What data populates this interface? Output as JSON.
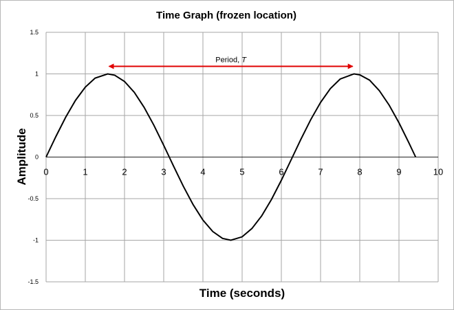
{
  "chart_data": {
    "type": "line",
    "title": "Time Graph (frozen location)",
    "xlabel": "Time (seconds)",
    "ylabel": "Amplitude",
    "xlim": [
      0,
      10
    ],
    "ylim": [
      -1.5,
      1.5
    ],
    "x_ticks": [
      "0",
      "1",
      "2",
      "3",
      "4",
      "5",
      "6",
      "7",
      "8",
      "9",
      "10"
    ],
    "y_ticks": [
      "1.5",
      "1",
      "0.5",
      "0",
      "-0.5",
      "-1",
      "-1.5"
    ],
    "grid": true,
    "series": [
      {
        "color": "#000000",
        "x": [
          0,
          0.25,
          0.5,
          0.75,
          1.0,
          1.25,
          1.571,
          1.75,
          2.0,
          2.25,
          2.5,
          2.75,
          3.0,
          3.142,
          3.25,
          3.5,
          3.75,
          4.0,
          4.25,
          4.5,
          4.712,
          5.0,
          5.25,
          5.5,
          5.75,
          6.0,
          6.283,
          6.5,
          6.75,
          7.0,
          7.25,
          7.5,
          7.854,
          8.0,
          8.25,
          8.5,
          8.75,
          9.0,
          9.25,
          9.425
        ],
        "y": [
          0,
          0.247,
          0.479,
          0.682,
          0.841,
          0.949,
          1.0,
          0.984,
          0.909,
          0.778,
          0.598,
          0.382,
          0.141,
          0,
          -0.108,
          -0.351,
          -0.572,
          -0.757,
          -0.895,
          -0.978,
          -1.0,
          -0.959,
          -0.859,
          -0.706,
          -0.508,
          -0.279,
          0,
          0.215,
          0.45,
          0.657,
          0.823,
          0.938,
          1.0,
          0.989,
          0.925,
          0.798,
          0.624,
          0.412,
          0.174,
          0
        ]
      }
    ],
    "annotation": {
      "label": "Period, ",
      "symbol": "T",
      "from_x": 1.571,
      "to_x": 7.854,
      "y": 1.1,
      "color": "#e00000"
    }
  }
}
